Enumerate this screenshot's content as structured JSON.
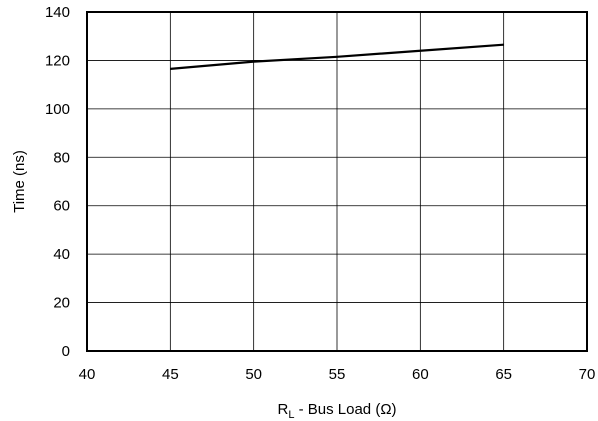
{
  "chart_data": {
    "type": "line",
    "title": "",
    "xlabel": "R",
    "xlabel_sub": "L",
    "xlabel_rest": " - Bus Load (Ω)",
    "ylabel": "Time (ns)",
    "xlim": [
      40,
      70
    ],
    "ylim": [
      0,
      140
    ],
    "x_ticks": [
      40,
      45,
      50,
      55,
      60,
      65,
      70
    ],
    "y_ticks": [
      0,
      20,
      40,
      60,
      80,
      100,
      120,
      140
    ],
    "grid": true,
    "legend": "none",
    "series": [
      {
        "x": [
          45,
          50,
          55,
          60,
          65
        ],
        "y": [
          116.5,
          119.5,
          121.5,
          124,
          126.5
        ],
        "color": "#000000"
      }
    ]
  }
}
